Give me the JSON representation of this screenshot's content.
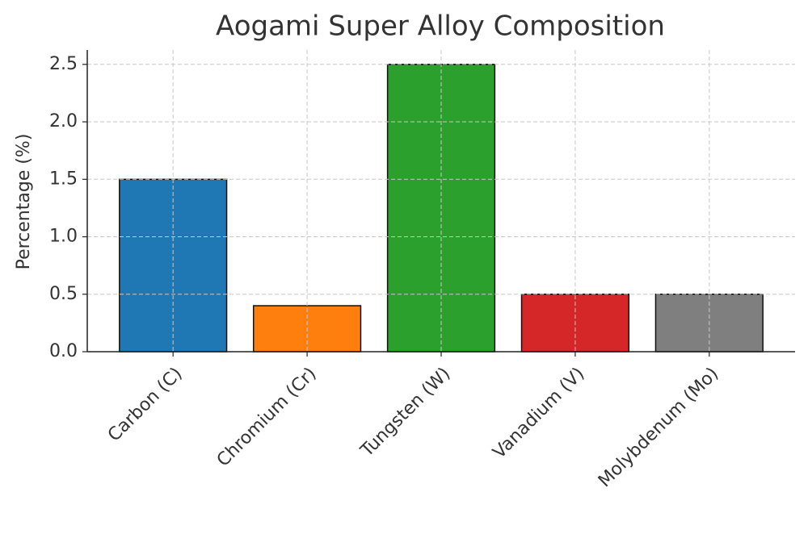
{
  "chart_data": {
    "type": "bar",
    "title": "Aogami Super Alloy Composition",
    "y_label": "Percentage (%)",
    "categories": [
      "Carbon (C)",
      "Chromium (Cr)",
      "Tungsten (W)",
      "Vanadium (V)",
      "Molybdenum (Mo)"
    ],
    "values": [
      1.5,
      0.4,
      2.5,
      0.5,
      0.5
    ],
    "colors": [
      "#1f77b4",
      "#ff7f0e",
      "#2ca02c",
      "#d62728",
      "#7f7f7f"
    ],
    "ylim": [
      0,
      2.625
    ],
    "yticks": [
      {
        "value": 0,
        "label": "0.0"
      },
      0.5,
      {
        "value": 1,
        "label": "1.0"
      },
      1.5,
      {
        "value": 2,
        "label": "2.0"
      },
      2.5
    ],
    "grid": true
  }
}
